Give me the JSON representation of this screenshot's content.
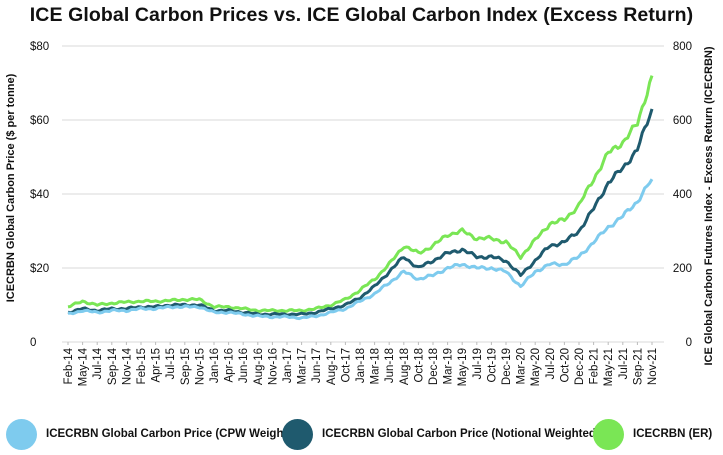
{
  "chart_data": {
    "type": "line",
    "title": "ICE Global Carbon Prices vs. ICE Global Carbon Index (Excess Return)",
    "ylabel_left": "ICECRBN Global Carbon Price ($ per tonne)",
    "ylabel_right": "ICE Global Carbon Futures Index - Excess Return (ICECRBN)",
    "left_ticks": [
      "0",
      "$20",
      "$40",
      "$60",
      "$80"
    ],
    "right_ticks": [
      "0",
      "200",
      "400",
      "600",
      "800"
    ],
    "ylim_left": [
      0,
      80
    ],
    "ylim_right": [
      0,
      800
    ],
    "grid": true,
    "legend_position": "bottom",
    "categories": [
      "Feb-14",
      "May-14",
      "Jul-14",
      "Sep-14",
      "Nov-14",
      "Feb-15",
      "Apr-15",
      "Jul-15",
      "Sep-15",
      "Nov-15",
      "Jan-16",
      "Apr-16",
      "Jun-16",
      "Aug-16",
      "Nov-16",
      "Jan-17",
      "Mar-17",
      "Jun-17",
      "Aug-17",
      "Oct-17",
      "Jan-18",
      "Mar-18",
      "Jun-18",
      "Aug-18",
      "Oct-18",
      "Dec-18",
      "Mar-19",
      "May-19",
      "Jul-19",
      "Oct-19",
      "Dec-19",
      "Mar-20",
      "May-20",
      "Jul-20",
      "Oct-20",
      "Dec-20",
      "Feb-21",
      "May-21",
      "Jul-21",
      "Sep-21",
      "Nov-21"
    ],
    "series": [
      {
        "name": "ICECRBN Global Carbon Price (CPW Weighted)",
        "axis": "left",
        "color": "#7ecbee",
        "values": [
          7.5,
          8.5,
          8.0,
          8.5,
          8.5,
          9.0,
          9.0,
          9.5,
          9.5,
          9.5,
          8.0,
          8.0,
          7.5,
          7.0,
          6.8,
          6.8,
          6.5,
          7.0,
          8.0,
          9.0,
          11.0,
          13.0,
          16.0,
          19.0,
          17.0,
          18.0,
          20.0,
          21.0,
          20.0,
          20.0,
          19.0,
          15.0,
          19.0,
          21.0,
          21.0,
          23.0,
          27.0,
          31.0,
          34.0,
          38.0,
          44.0
        ]
      },
      {
        "name": "ICECRBN Global Carbon Price (Notional Weighted)",
        "axis": "left",
        "color": "#1f5a6e",
        "values": [
          8.0,
          9.0,
          8.5,
          9.0,
          9.0,
          9.5,
          9.5,
          10.0,
          10.0,
          10.0,
          8.5,
          8.5,
          8.0,
          7.5,
          7.5,
          7.5,
          7.5,
          8.0,
          9.0,
          10.0,
          12.0,
          15.0,
          19.0,
          23.0,
          20.0,
          22.0,
          24.0,
          25.0,
          23.0,
          23.0,
          22.0,
          18.0,
          22.0,
          26.0,
          27.0,
          30.0,
          36.0,
          43.0,
          47.0,
          52.0,
          63.0
        ]
      },
      {
        "name": "ICECRBN (ER)",
        "axis": "right",
        "color": "#7ae655",
        "values": [
          95,
          110,
          100,
          105,
          108,
          110,
          110,
          112,
          115,
          115,
          95,
          95,
          90,
          85,
          85,
          85,
          85,
          90,
          100,
          115,
          140,
          170,
          210,
          260,
          240,
          260,
          290,
          300,
          280,
          280,
          270,
          230,
          275,
          320,
          330,
          370,
          440,
          510,
          540,
          590,
          720
        ]
      }
    ]
  }
}
